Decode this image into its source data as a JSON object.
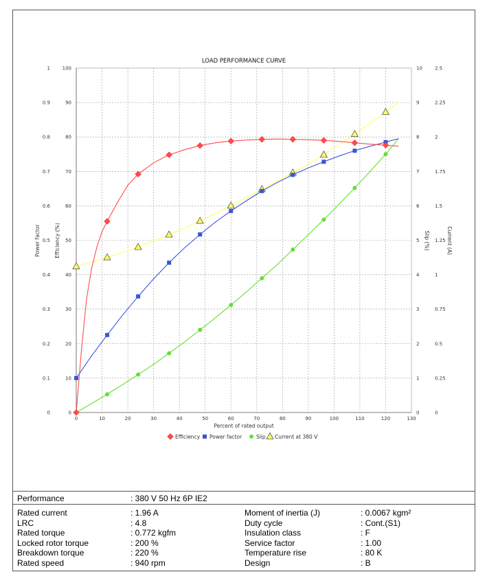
{
  "chart_data": {
    "type": "line",
    "title": "LOAD PERFORMANCE CURVE",
    "xlabel": "Percent of rated output",
    "xlim": [
      0,
      130
    ],
    "xticks": [
      0,
      10,
      20,
      30,
      40,
      50,
      60,
      70,
      80,
      90,
      100,
      110,
      120,
      130
    ],
    "grid": true,
    "legend_position": "bottom",
    "axes": {
      "power_factor": {
        "label": "Power factor",
        "side": "left-outer",
        "ticks": [
          "0",
          "0.1",
          "0.2",
          "0.3",
          "0.4",
          "0.5",
          "0.6",
          "0.7",
          "0.8",
          "0.9",
          "1"
        ]
      },
      "efficiency": {
        "label": "Efficiency (%)",
        "side": "left-inner",
        "ticks": [
          "0",
          "10",
          "20",
          "30",
          "40",
          "50",
          "60",
          "70",
          "80",
          "90",
          "100"
        ]
      },
      "slip": {
        "label": "Slip (%)",
        "side": "right-inner",
        "ticks": [
          "0",
          "1",
          "2",
          "3",
          "4",
          "5",
          "6",
          "7",
          "8",
          "9",
          "10"
        ]
      },
      "current": {
        "label": "Current (A)",
        "side": "right-outer",
        "ticks": [
          "0",
          "0.25",
          "0.5",
          "0.75",
          "1",
          "1.25",
          "1.5",
          "1.75",
          "2",
          "2.25",
          "2.5"
        ]
      }
    },
    "series": [
      {
        "name": "Efficiency",
        "axis": "efficiency",
        "color": "#ff4a4a",
        "marker": "diamond",
        "x": [
          0,
          12,
          24,
          36,
          48,
          60,
          72,
          84,
          96,
          108,
          120
        ],
        "y": [
          0,
          55.5,
          69.2,
          74.8,
          77.5,
          78.8,
          79.3,
          79.3,
          79.0,
          78.3,
          77.6
        ],
        "curve": [
          [
            0,
            0
          ],
          [
            2,
            18
          ],
          [
            4,
            33
          ],
          [
            6,
            42
          ],
          [
            8,
            48
          ],
          [
            10,
            52.5
          ],
          [
            12,
            55.5
          ],
          [
            16,
            61
          ],
          [
            20,
            66
          ],
          [
            24,
            69.2
          ],
          [
            30,
            72.5
          ],
          [
            36,
            74.8
          ],
          [
            42,
            76.3
          ],
          [
            48,
            77.5
          ],
          [
            54,
            78.3
          ],
          [
            60,
            78.8
          ],
          [
            66,
            79.1
          ],
          [
            72,
            79.3
          ],
          [
            78,
            79.4
          ],
          [
            84,
            79.3
          ],
          [
            90,
            79.2
          ],
          [
            96,
            79.0
          ],
          [
            102,
            78.7
          ],
          [
            108,
            78.3
          ],
          [
            114,
            77.9
          ],
          [
            120,
            77.6
          ],
          [
            125,
            77.3
          ]
        ]
      },
      {
        "name": "Power factor",
        "axis": "power_factor",
        "color": "#3b55d9",
        "marker": "square",
        "x": [
          0,
          12,
          24,
          36,
          48,
          60,
          72,
          84,
          96,
          108,
          120
        ],
        "y": [
          0.1,
          0.225,
          0.337,
          0.435,
          0.517,
          0.585,
          0.643,
          0.69,
          0.728,
          0.76,
          0.785
        ],
        "curve": [
          [
            0,
            0.1
          ],
          [
            6,
            0.165
          ],
          [
            12,
            0.225
          ],
          [
            18,
            0.283
          ],
          [
            24,
            0.337
          ],
          [
            30,
            0.388
          ],
          [
            36,
            0.435
          ],
          [
            42,
            0.478
          ],
          [
            48,
            0.517
          ],
          [
            54,
            0.553
          ],
          [
            60,
            0.585
          ],
          [
            66,
            0.615
          ],
          [
            72,
            0.643
          ],
          [
            78,
            0.668
          ],
          [
            84,
            0.69
          ],
          [
            90,
            0.71
          ],
          [
            96,
            0.728
          ],
          [
            102,
            0.745
          ],
          [
            108,
            0.76
          ],
          [
            114,
            0.773
          ],
          [
            120,
            0.785
          ],
          [
            125,
            0.795
          ]
        ]
      },
      {
        "name": "Slip",
        "axis": "slip",
        "color": "#66dd33",
        "marker": "circle",
        "x": [
          0,
          12,
          24,
          36,
          48,
          60,
          72,
          84,
          96,
          108,
          120
        ],
        "y": [
          0,
          0.53,
          1.1,
          1.72,
          2.4,
          3.12,
          3.9,
          4.73,
          5.6,
          6.52,
          7.5
        ],
        "curve": [
          [
            0,
            0
          ],
          [
            6,
            0.26
          ],
          [
            12,
            0.53
          ],
          [
            18,
            0.81
          ],
          [
            24,
            1.1
          ],
          [
            30,
            1.4
          ],
          [
            36,
            1.72
          ],
          [
            42,
            2.05
          ],
          [
            48,
            2.4
          ],
          [
            54,
            2.75
          ],
          [
            60,
            3.12
          ],
          [
            66,
            3.5
          ],
          [
            72,
            3.9
          ],
          [
            78,
            4.3
          ],
          [
            84,
            4.73
          ],
          [
            90,
            5.16
          ],
          [
            96,
            5.6
          ],
          [
            102,
            6.05
          ],
          [
            108,
            6.52
          ],
          [
            114,
            7.0
          ],
          [
            120,
            7.5
          ],
          [
            125,
            7.95
          ]
        ]
      },
      {
        "name": "Current at 380 V",
        "axis": "current",
        "color": "#ffff66",
        "marker": "triangle",
        "x": [
          0,
          12,
          24,
          36,
          48,
          60,
          72,
          84,
          96,
          108,
          120
        ],
        "y": [
          1.06,
          1.125,
          1.2,
          1.29,
          1.39,
          1.5,
          1.62,
          1.74,
          1.87,
          2.02,
          2.18
        ],
        "curve": [
          [
            0,
            1.06
          ],
          [
            12,
            1.125
          ],
          [
            24,
            1.2
          ],
          [
            36,
            1.29
          ],
          [
            48,
            1.39
          ],
          [
            60,
            1.5
          ],
          [
            72,
            1.62
          ],
          [
            84,
            1.74
          ],
          [
            96,
            1.87
          ],
          [
            108,
            2.02
          ],
          [
            120,
            2.18
          ],
          [
            125,
            2.25
          ]
        ]
      }
    ]
  },
  "specs": {
    "performance": {
      "label": "Performance",
      "value": ": 380 V 50 Hz 6P IE2"
    },
    "left": [
      {
        "label": "Rated current",
        "value": ": 1.96 A"
      },
      {
        "label": "LRC",
        "value": ": 4.8"
      },
      {
        "label": "Rated torque",
        "value": ": 0.772 kgfm"
      },
      {
        "label": "Locked rotor torque",
        "value": ": 200 %"
      },
      {
        "label": "Breakdown torque",
        "value": ": 220 %"
      },
      {
        "label": "Rated speed",
        "value": ": 940 rpm"
      }
    ],
    "right": [
      {
        "label": "Moment of inertia (J)",
        "value": ": 0.0067 kgm²"
      },
      {
        "label": "Duty cycle",
        "value": ": Cont.(S1)"
      },
      {
        "label": "Insulation class",
        "value": ": F"
      },
      {
        "label": "Service factor",
        "value": ": 1.00"
      },
      {
        "label": "Temperature rise",
        "value": ": 80 K"
      },
      {
        "label": "Design",
        "value": ": B"
      }
    ]
  }
}
